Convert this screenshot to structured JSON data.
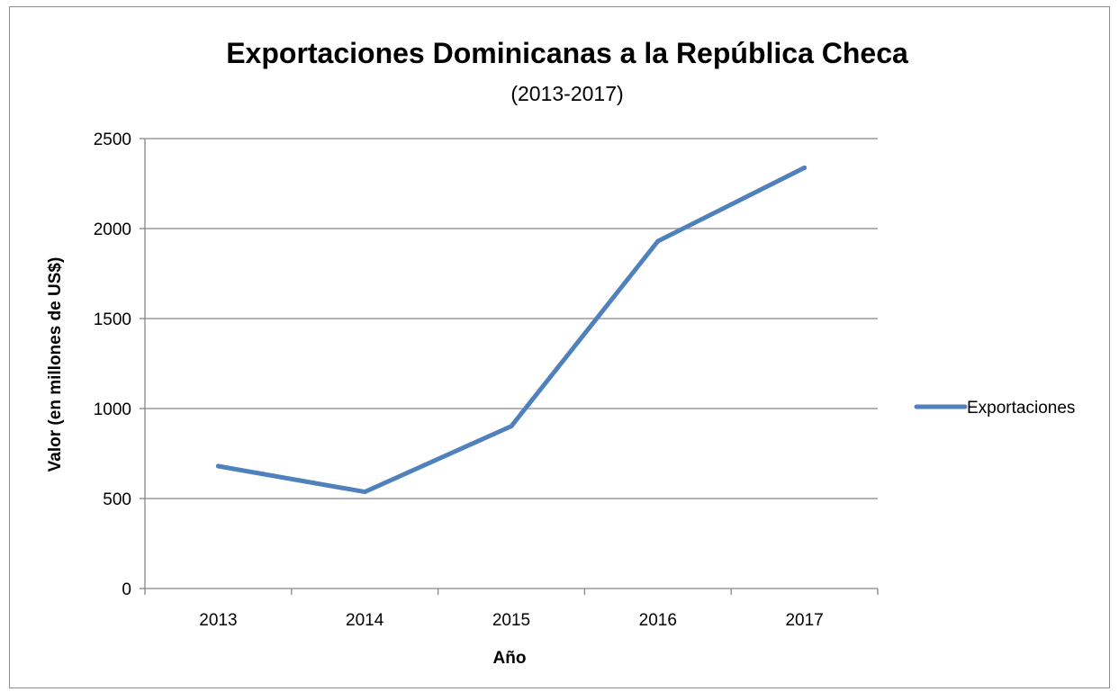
{
  "chart_data": {
    "type": "line",
    "title": "Exportaciones Dominicanas a la República Checa",
    "subtitle": "(2013-2017)",
    "xlabel": "Año",
    "ylabel": "Valor (en millones de US$)",
    "categories": [
      "2013",
      "2014",
      "2015",
      "2016",
      "2017"
    ],
    "series": [
      {
        "name": "Exportaciones",
        "values": [
          680,
          537,
          902,
          1930,
          2338
        ],
        "color": "#4f81bd"
      }
    ],
    "ylim": [
      0,
      2500
    ],
    "yticks": [
      0,
      500,
      1000,
      1500,
      2000,
      2500
    ],
    "grid": true,
    "legend_position": "right"
  }
}
